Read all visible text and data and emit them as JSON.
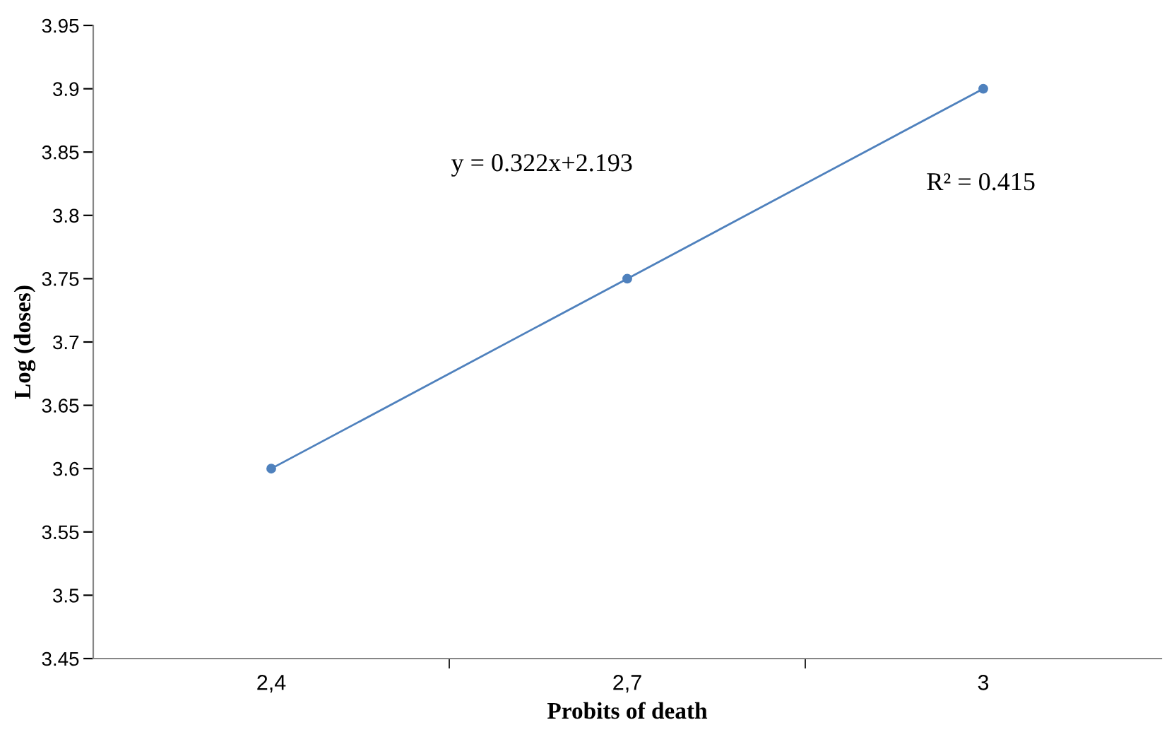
{
  "chart_data": {
    "type": "line",
    "xlabel": "Probits of death",
    "ylabel": "Log (doses)",
    "categories": [
      "2,4",
      "2,7",
      "3"
    ],
    "series": [
      {
        "color": "#4f81bd",
        "values": [
          3.6,
          3.75,
          3.9
        ]
      }
    ],
    "ylim": [
      3.45,
      3.95
    ],
    "yticks": [
      3.45,
      3.5,
      3.55,
      3.6,
      3.65,
      3.7,
      3.75,
      3.8,
      3.85,
      3.9,
      3.95
    ],
    "marker": "circle",
    "line_style": "solid",
    "grid": false,
    "annotations": [
      "y = 0.322x+2.193",
      "R² = 0.415"
    ]
  }
}
